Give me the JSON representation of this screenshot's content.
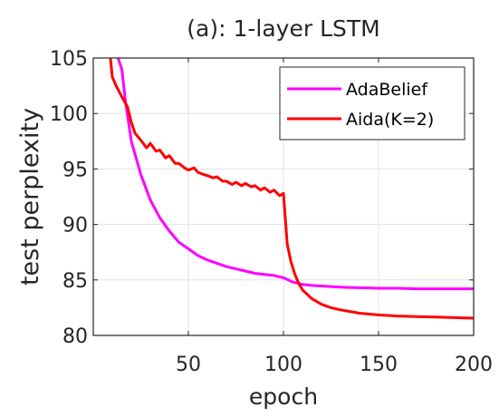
{
  "chart_data": {
    "type": "line",
    "title": "(a): 1-layer LSTM",
    "xlabel": "epoch",
    "ylabel": "test perplexity",
    "xlim": [
      0,
      200
    ],
    "ylim": [
      80,
      105
    ],
    "xticks": [
      50,
      100,
      150,
      200
    ],
    "yticks": [
      80,
      85,
      90,
      95,
      100,
      105
    ],
    "grid": true,
    "legend_position": "top-right",
    "series": [
      {
        "name": "AdaBelief",
        "color": "#ff00ff",
        "x": [
          13,
          15,
          17,
          20,
          25,
          30,
          35,
          40,
          45,
          50,
          55,
          60,
          65,
          70,
          75,
          80,
          85,
          90,
          95,
          100,
          105,
          110,
          115,
          120,
          130,
          140,
          150,
          160,
          170,
          180,
          190,
          200
        ],
        "y": [
          105,
          104,
          101,
          97.5,
          94.5,
          92.2,
          90.6,
          89.4,
          88.4,
          87.8,
          87.2,
          86.8,
          86.5,
          86.2,
          86,
          85.8,
          85.6,
          85.5,
          85.4,
          85.2,
          84.8,
          84.6,
          84.5,
          84.45,
          84.35,
          84.3,
          84.25,
          84.25,
          84.2,
          84.2,
          84.2,
          84.2
        ]
      },
      {
        "name": "Aida(K=2)",
        "color": "#ff0000",
        "x": [
          9,
          10,
          12,
          15,
          18,
          20,
          22,
          25,
          28,
          30,
          33,
          35,
          38,
          40,
          43,
          45,
          48,
          50,
          53,
          55,
          58,
          60,
          63,
          65,
          68,
          70,
          73,
          75,
          78,
          80,
          83,
          85,
          88,
          90,
          93,
          95,
          98,
          100,
          101,
          102,
          104,
          106,
          108,
          110,
          115,
          120,
          125,
          130,
          140,
          150,
          160,
          170,
          180,
          190,
          200
        ],
        "y": [
          105,
          103.3,
          102.5,
          101.5,
          100.6,
          99.2,
          98.2,
          97.6,
          96.9,
          97.3,
          96.6,
          96.7,
          96,
          96.2,
          95.5,
          95.5,
          95.1,
          94.9,
          95.1,
          94.7,
          94.5,
          94.4,
          94.2,
          94.3,
          93.9,
          93.9,
          93.6,
          93.8,
          93.5,
          93.7,
          93.4,
          93.5,
          93.1,
          93.3,
          92.9,
          93.1,
          92.6,
          92.8,
          90.5,
          88.2,
          86.6,
          85.5,
          84.7,
          84.1,
          83.3,
          82.8,
          82.5,
          82.3,
          82,
          81.85,
          81.75,
          81.7,
          81.65,
          81.6,
          81.55
        ]
      }
    ]
  }
}
